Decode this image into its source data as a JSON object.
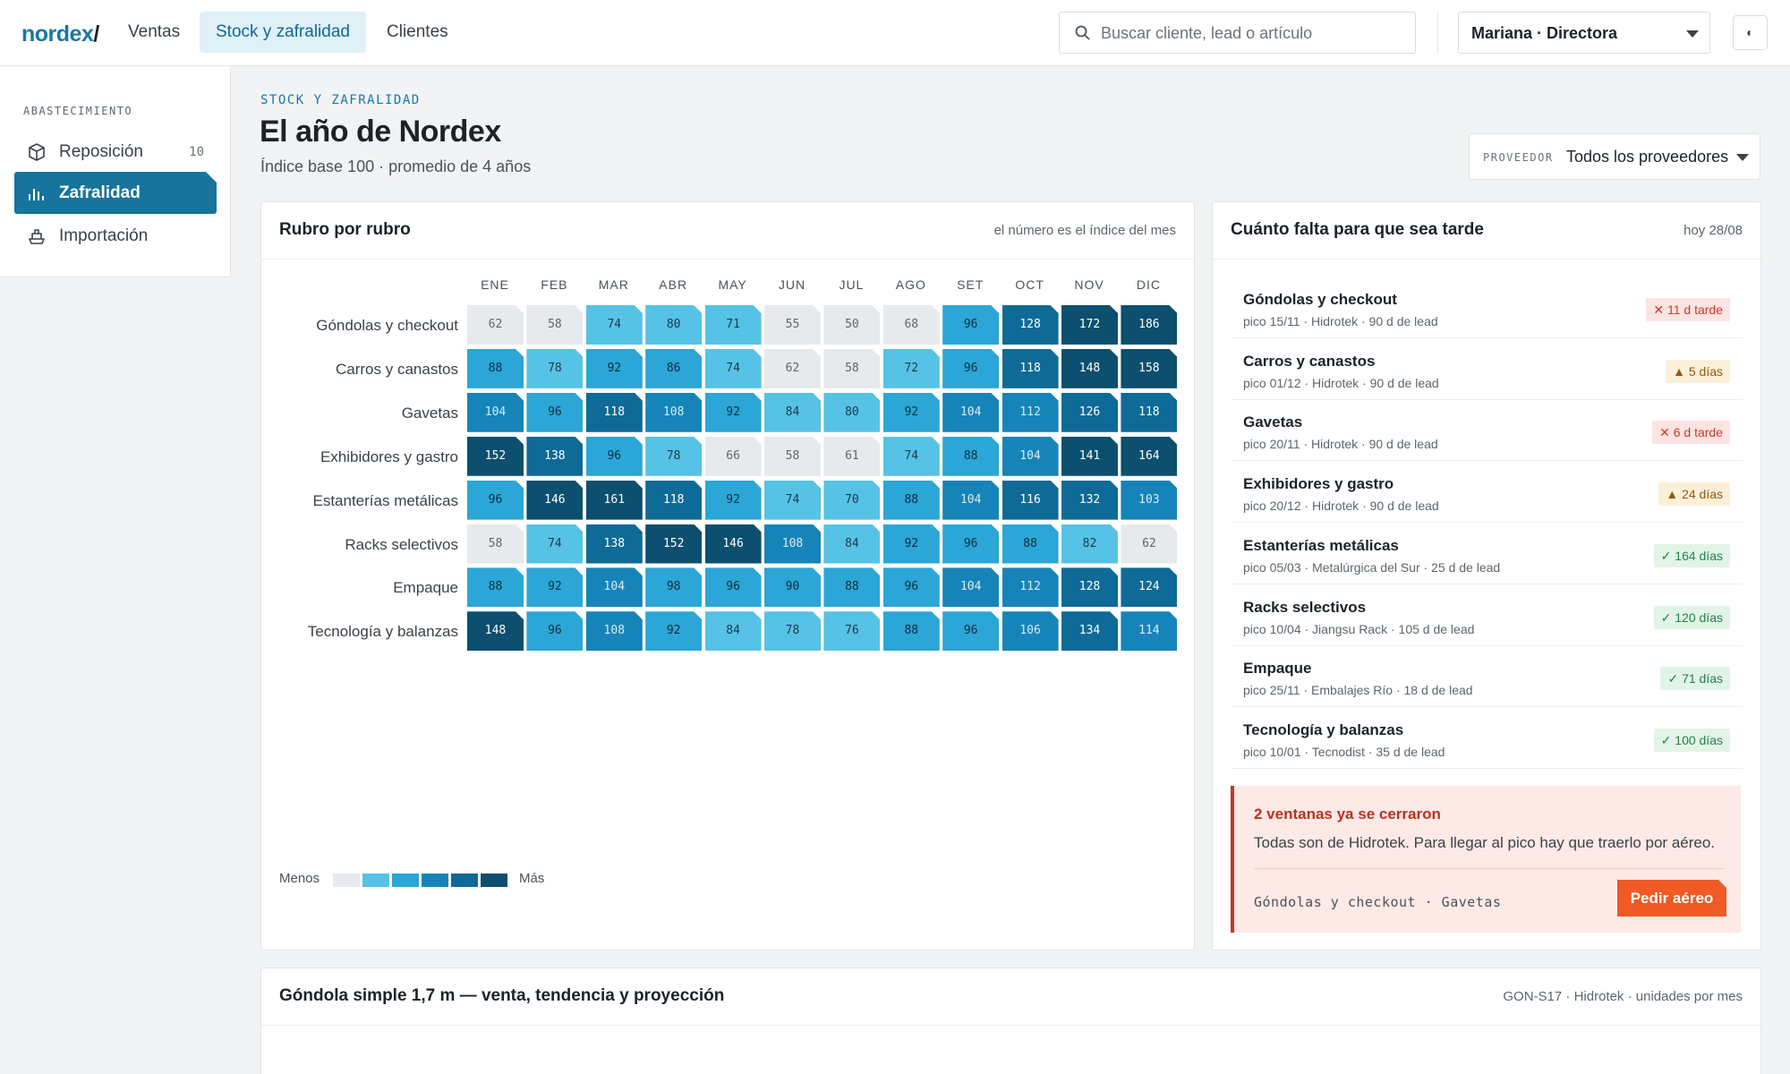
{
  "brand": "nordex",
  "nav": {
    "tabs": [
      "Ventas",
      "Stock y zafralidad",
      "Clientes"
    ]
  },
  "search": {
    "placeholder": "Buscar cliente, lead o artículo"
  },
  "user": {
    "label": "Mariana · Directora"
  },
  "sidebar": {
    "heading": "ABASTECIMIENTO",
    "items": [
      {
        "label": "Reposición",
        "count": "10",
        "icon": "box-icon"
      },
      {
        "label": "Zafralidad",
        "icon": "bar-chart-icon"
      },
      {
        "label": "Importación",
        "icon": "ship-icon"
      }
    ]
  },
  "page": {
    "breadcrumb": "STOCK Y ZAFRALIDAD",
    "title": "El año de Nordex",
    "subtitle": "Índice base 100 · promedio de 4 años",
    "provider_key": "PROVEEDOR",
    "provider_value": "Todos los proveedores"
  },
  "heatmap": {
    "title": "Rubro por rubro",
    "note": "el número es el índice del mes",
    "months": [
      "ENE",
      "FEB",
      "MAR",
      "ABR",
      "MAY",
      "JUN",
      "JUL",
      "AGO",
      "SET",
      "OCT",
      "NOV",
      "DIC"
    ],
    "rows": [
      {
        "label": "Góndolas y checkout",
        "values": [
          62,
          58,
          74,
          80,
          71,
          55,
          50,
          68,
          96,
          128,
          172,
          186
        ]
      },
      {
        "label": "Carros y canastos",
        "values": [
          88,
          78,
          92,
          86,
          74,
          62,
          58,
          72,
          96,
          118,
          148,
          158
        ]
      },
      {
        "label": "Gavetas",
        "values": [
          104,
          96,
          118,
          108,
          92,
          84,
          80,
          92,
          104,
          112,
          126,
          118
        ]
      },
      {
        "label": "Exhibidores y gastro",
        "values": [
          152,
          138,
          96,
          78,
          66,
          58,
          61,
          74,
          88,
          104,
          141,
          164
        ]
      },
      {
        "label": "Estanterías metálicas",
        "values": [
          96,
          146,
          161,
          118,
          92,
          74,
          70,
          88,
          104,
          116,
          132,
          103
        ]
      },
      {
        "label": "Racks selectivos",
        "values": [
          58,
          74,
          138,
          152,
          146,
          108,
          84,
          92,
          96,
          88,
          82,
          62
        ]
      },
      {
        "label": "Empaque",
        "values": [
          88,
          92,
          104,
          98,
          96,
          90,
          88,
          96,
          104,
          112,
          128,
          124
        ]
      },
      {
        "label": "Tecnología y balanzas",
        "values": [
          148,
          96,
          108,
          92,
          84,
          78,
          76,
          88,
          96,
          106,
          134,
          114
        ]
      }
    ],
    "legend_less": "Menos",
    "legend_more": "Más",
    "palette": [
      "#e6eaec",
      "#56c2e6",
      "#2ba6d6",
      "#1684b8",
      "#0f6a97",
      "#0c4f6e"
    ]
  },
  "leadtimes": {
    "title": "Cuánto falta para que sea tarde",
    "today": "hoy 28/08",
    "items": [
      {
        "name": "Góndolas y checkout",
        "sub": "pico 15/11 · Hidrotek · 90 d de lead",
        "status": "late",
        "badge": "✕ 11 d tarde"
      },
      {
        "name": "Carros y canastos",
        "sub": "pico 01/12 · Hidrotek · 90 d de lead",
        "status": "warn",
        "badge": "▲ 5 días"
      },
      {
        "name": "Gavetas",
        "sub": "pico 20/11 · Hidrotek · 90 d de lead",
        "status": "late",
        "badge": "✕ 6 d tarde"
      },
      {
        "name": "Exhibidores y gastro",
        "sub": "pico 20/12 · Hidrotek · 90 d de lead",
        "status": "warn",
        "badge": "▲ 24 días"
      },
      {
        "name": "Estanterías metálicas",
        "sub": "pico 05/03 · Metalúrgica del Sur · 25 d de lead",
        "status": "ok",
        "badge": "✓ 164 días"
      },
      {
        "name": "Racks selectivos",
        "sub": "pico 10/04 · Jiangsu Rack · 105 d de lead",
        "status": "ok",
        "badge": "✓ 120 días"
      },
      {
        "name": "Empaque",
        "sub": "pico 25/11 · Embalajes Río · 18 d de lead",
        "status": "ok",
        "badge": "✓ 71 días"
      },
      {
        "name": "Tecnología y balanzas",
        "sub": "pico 10/01 · Tecnodist · 35 d de lead",
        "status": "ok",
        "badge": "✓ 100 días"
      }
    ],
    "alert": {
      "title": "2 ventanas ya se cerraron",
      "body": "Todas son de Hidrotek. Para llegar al pico hay que traerlo por aéreo.",
      "list": "Góndolas y checkout · Gavetas",
      "button": "Pedir aéreo"
    }
  },
  "bottom": {
    "title": "Góndola simple 1,7 m — venta, tendencia y proyección",
    "note": "GON-S17 · Hidrotek · unidades por mes"
  }
}
